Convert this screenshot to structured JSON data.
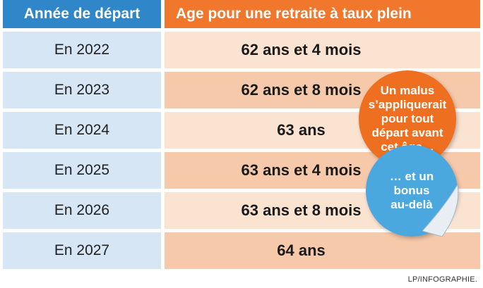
{
  "header": {
    "col_year": "Année de départ",
    "col_age": "Age pour une retraite à taux plein"
  },
  "rows": [
    {
      "year": "En 2022",
      "age": "62 ans et 4 mois"
    },
    {
      "year": "En 2023",
      "age": "62 ans et 8 mois"
    },
    {
      "year": "En 2024",
      "age": "63 ans"
    },
    {
      "year": "En 2025",
      "age": "63 ans et 4 mois"
    },
    {
      "year": "En 2026",
      "age": "63 ans et 8 mois"
    },
    {
      "year": "En 2027",
      "age": "64 ans"
    }
  ],
  "stickers": {
    "malus": "Un malus s’appliquerait pour tout départ avant cet âge…",
    "bonus": "… et un bonus au-delà"
  },
  "credit": "LP/INFOGRAPHIE.",
  "colors": {
    "header_blue": "#2f86c8",
    "header_orange": "#f1772d",
    "year_cell": "#d6e6f5",
    "age_light": "#fbe3d2",
    "age_dark": "#f7c9ab",
    "sticker_orange": "#ee6f1f",
    "sticker_blue": "#4aa8de"
  }
}
